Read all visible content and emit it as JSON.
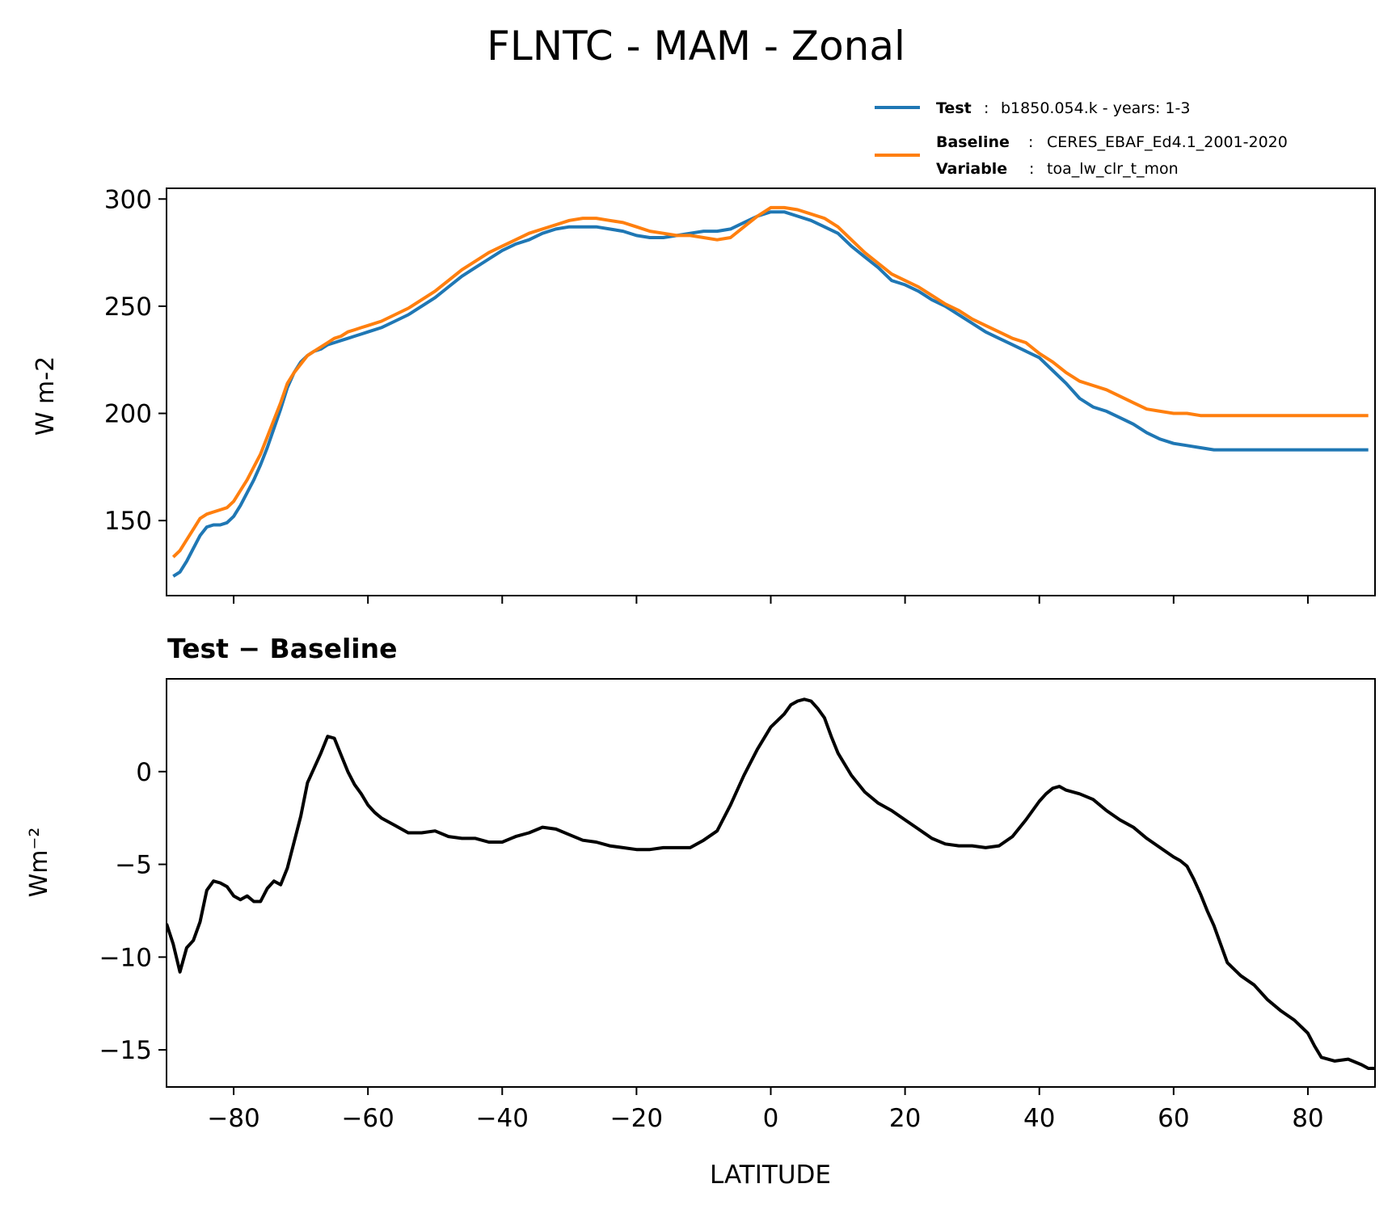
{
  "title": "FLNTC - MAM - Zonal",
  "legend": {
    "test_key": "Test",
    "test_val": "b1850.054.k - years: 1-3",
    "baseline_key": "Baseline",
    "baseline_val": "CERES_EBAF_Ed4.1_2001-2020",
    "variable_key": "Variable",
    "variable_val": "toa_lw_clr_t_mon",
    "sep": ":"
  },
  "colors": {
    "test": "#1f77b4",
    "baseline": "#ff7f0e",
    "diff": "#000000"
  },
  "chart_data": [
    {
      "type": "line",
      "title": "",
      "xlabel": "",
      "ylabel": "W m-2",
      "xlim": [
        -90,
        90
      ],
      "ylim": [
        115,
        305
      ],
      "yticks": [
        150,
        200,
        250,
        300
      ],
      "xticks": [
        -80,
        -60,
        -40,
        -20,
        0,
        20,
        40,
        60,
        80
      ],
      "x": [
        -89,
        -88,
        -87,
        -86,
        -85,
        -84,
        -83,
        -82,
        -81,
        -80,
        -79,
        -78,
        -77,
        -76,
        -75,
        -74,
        -73,
        -72,
        -71,
        -70,
        -69,
        -68,
        -67,
        -66,
        -65,
        -64,
        -63,
        -62,
        -61,
        -60,
        -58,
        -56,
        -54,
        -52,
        -50,
        -48,
        -46,
        -44,
        -42,
        -40,
        -38,
        -36,
        -34,
        -32,
        -30,
        -28,
        -26,
        -24,
        -22,
        -20,
        -18,
        -16,
        -14,
        -12,
        -10,
        -8,
        -6,
        -4,
        -2,
        0,
        2,
        4,
        6,
        8,
        10,
        12,
        14,
        16,
        18,
        20,
        22,
        24,
        26,
        28,
        30,
        32,
        34,
        36,
        38,
        40,
        42,
        44,
        46,
        48,
        50,
        52,
        54,
        56,
        58,
        60,
        62,
        64,
        66,
        68,
        70,
        72,
        74,
        76,
        78,
        80,
        82,
        84,
        86,
        88,
        89
      ],
      "series": [
        {
          "name": "Test",
          "values": [
            124,
            126,
            131,
            137,
            143,
            147,
            148,
            148,
            149,
            152,
            157,
            163,
            169,
            176,
            184,
            193,
            202,
            212,
            219,
            224,
            227,
            229,
            230,
            232,
            233,
            234,
            235,
            236,
            237,
            238,
            240,
            243,
            246,
            250,
            254,
            259,
            264,
            268,
            272,
            276,
            279,
            281,
            284,
            286,
            287,
            287,
            287,
            286,
            285,
            283,
            282,
            282,
            283,
            284,
            285,
            285,
            286,
            289,
            292,
            294,
            294,
            292,
            290,
            287,
            284,
            278,
            273,
            268,
            262,
            260,
            257,
            253,
            250,
            246,
            242,
            238,
            235,
            232,
            229,
            226,
            220,
            214,
            207,
            203,
            201,
            198,
            195,
            191,
            188,
            186,
            185,
            184,
            183,
            183,
            183,
            183,
            183,
            183,
            183,
            183,
            183,
            183,
            183,
            183,
            183
          ],
          "color": "#1f77b4"
        },
        {
          "name": "Baseline",
          "values": [
            133,
            136,
            141,
            146,
            151,
            153,
            154,
            155,
            156,
            159,
            164,
            169,
            175,
            181,
            189,
            197,
            205,
            214,
            219,
            223,
            227,
            229,
            231,
            233,
            235,
            236,
            238,
            239,
            240,
            241,
            243,
            246,
            249,
            253,
            257,
            262,
            267,
            271,
            275,
            278,
            281,
            284,
            286,
            288,
            290,
            291,
            291,
            290,
            289,
            287,
            285,
            284,
            283,
            283,
            282,
            281,
            282,
            287,
            292,
            296,
            296,
            295,
            293,
            291,
            287,
            281,
            275,
            270,
            265,
            262,
            259,
            255,
            251,
            248,
            244,
            241,
            238,
            235,
            233,
            228,
            224,
            219,
            215,
            213,
            211,
            208,
            205,
            202,
            201,
            200,
            200,
            199,
            199,
            199,
            199,
            199,
            199,
            199,
            199,
            199,
            199,
            199,
            199,
            199,
            199
          ],
          "color": "#ff7f0e"
        }
      ]
    },
    {
      "type": "line",
      "title": "Test − Baseline",
      "xlabel": "LATITUDE",
      "ylabel": "Wm⁻²",
      "xlim": [
        -90,
        90
      ],
      "ylim": [
        -17,
        5
      ],
      "yticks": [
        -15,
        -10,
        -5,
        0
      ],
      "xticks": [
        -80,
        -60,
        -40,
        -20,
        0,
        20,
        40,
        60,
        80
      ],
      "x": [
        -90,
        -89,
        -88,
        -87,
        -86,
        -85,
        -84,
        -83,
        -82,
        -81,
        -80,
        -79,
        -78,
        -77,
        -76,
        -75,
        -74,
        -73,
        -72,
        -71,
        -70,
        -69,
        -68,
        -67,
        -66,
        -65,
        -64,
        -63,
        -62,
        -61,
        -60,
        -59,
        -58,
        -56,
        -54,
        -52,
        -50,
        -48,
        -46,
        -44,
        -42,
        -40,
        -38,
        -36,
        -34,
        -32,
        -30,
        -28,
        -26,
        -24,
        -22,
        -20,
        -18,
        -16,
        -14,
        -12,
        -10,
        -8,
        -6,
        -4,
        -2,
        0,
        2,
        3,
        4,
        5,
        6,
        7,
        8,
        9,
        10,
        12,
        14,
        16,
        18,
        20,
        22,
        24,
        26,
        28,
        30,
        32,
        34,
        36,
        38,
        40,
        41,
        42,
        43,
        44,
        46,
        48,
        50,
        52,
        54,
        56,
        58,
        60,
        61,
        62,
        63,
        64,
        65,
        66,
        67,
        68,
        70,
        72,
        74,
        76,
        78,
        80,
        81,
        82,
        84,
        86,
        88,
        89,
        90
      ],
      "series": [
        {
          "name": "",
          "values": [
            -8.2,
            -9.3,
            -10.8,
            -9.5,
            -9.1,
            -8.1,
            -6.4,
            -5.9,
            -6.0,
            -6.2,
            -6.7,
            -6.9,
            -6.7,
            -7.0,
            -7.0,
            -6.3,
            -5.9,
            -6.1,
            -5.2,
            -3.8,
            -2.4,
            -0.6,
            0.2,
            1.0,
            1.9,
            1.8,
            0.9,
            0.0,
            -0.7,
            -1.2,
            -1.8,
            -2.2,
            -2.5,
            -2.9,
            -3.3,
            -3.3,
            -3.2,
            -3.5,
            -3.6,
            -3.6,
            -3.8,
            -3.8,
            -3.5,
            -3.3,
            -3.0,
            -3.1,
            -3.4,
            -3.7,
            -3.8,
            -4.0,
            -4.1,
            -4.2,
            -4.2,
            -4.1,
            -4.1,
            -4.1,
            -3.7,
            -3.2,
            -1.8,
            -0.2,
            1.2,
            2.4,
            3.1,
            3.6,
            3.8,
            3.9,
            3.8,
            3.4,
            2.9,
            1.9,
            1.0,
            -0.2,
            -1.1,
            -1.7,
            -2.1,
            -2.6,
            -3.1,
            -3.6,
            -3.9,
            -4.0,
            -4.0,
            -4.1,
            -4.0,
            -3.5,
            -2.6,
            -1.6,
            -1.2,
            -0.9,
            -0.8,
            -1.0,
            -1.2,
            -1.5,
            -2.1,
            -2.6,
            -3.0,
            -3.6,
            -4.1,
            -4.6,
            -4.8,
            -5.1,
            -5.8,
            -6.6,
            -7.5,
            -8.3,
            -9.3,
            -10.3,
            -11.0,
            -11.5,
            -12.3,
            -12.9,
            -13.4,
            -14.1,
            -14.8,
            -15.4,
            -15.6,
            -15.5,
            -15.8,
            -16.0,
            -16.0
          ],
          "color": "#000000"
        }
      ]
    }
  ]
}
